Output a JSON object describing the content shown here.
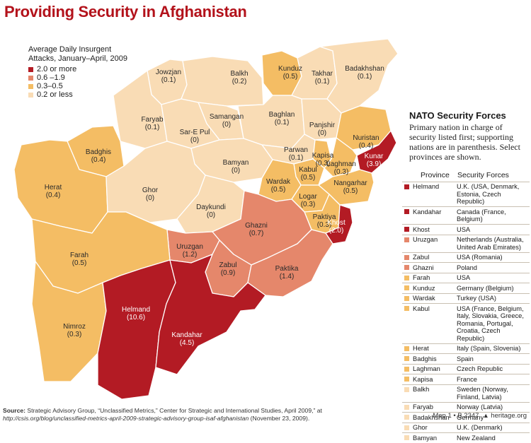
{
  "title": "Providing Security in Afghanistan",
  "legend": {
    "title_line1": "Average Daily Insurgent",
    "title_line2": "Attacks, January–April, 2009",
    "items": [
      {
        "label": "2.0 or more",
        "color": "#b31b24"
      },
      {
        "label": "0.6 –1.9",
        "color": "#e5876b"
      },
      {
        "label": "0.3–0.5",
        "color": "#f4bd64"
      },
      {
        "label": "0.2 or less",
        "color": "#f9dcb5"
      }
    ]
  },
  "provinces": [
    {
      "name": "Jowzjan",
      "value": "(0.1)",
      "color": "#f9dcb5"
    },
    {
      "name": "Balkh",
      "value": "(0.2)",
      "color": "#f9dcb5"
    },
    {
      "name": "Kunduz",
      "value": "(0.5)",
      "color": "#f4bd64"
    },
    {
      "name": "Takhar",
      "value": "(0.1)",
      "color": "#f9dcb5"
    },
    {
      "name": "Badakhshan",
      "value": "(0.1)",
      "color": "#f9dcb5"
    },
    {
      "name": "Faryab",
      "value": "(0.1)",
      "color": "#f9dcb5"
    },
    {
      "name": "Samangan",
      "value": "(0)",
      "color": "#f9dcb5"
    },
    {
      "name": "Baghlan",
      "value": "(0.1)",
      "color": "#f9dcb5"
    },
    {
      "name": "Panjshir",
      "value": "(0)",
      "color": "#f9dcb5"
    },
    {
      "name": "Sar-E Pul",
      "value": "(0)",
      "color": "#f9dcb5"
    },
    {
      "name": "Nuristan",
      "value": "(0.4)",
      "color": "#f4bd64"
    },
    {
      "name": "Badghis",
      "value": "(0.4)",
      "color": "#f4bd64"
    },
    {
      "name": "Kunar",
      "value": "(3.9)",
      "color": "#b31b24"
    },
    {
      "name": "Parwan",
      "value": "(0.1)",
      "color": "#f9dcb5"
    },
    {
      "name": "Kapisa",
      "value": "(0.3)",
      "color": "#f4bd64"
    },
    {
      "name": "Bamyan",
      "value": "(0)",
      "color": "#f9dcb5"
    },
    {
      "name": "Kabul",
      "value": "(0.5)",
      "color": "#f4bd64"
    },
    {
      "name": "Laghman",
      "value": "(0.3)",
      "color": "#f4bd64"
    },
    {
      "name": "Herat",
      "value": "(0.4)",
      "color": "#f4bd64"
    },
    {
      "name": "Wardak",
      "value": "(0.5)",
      "color": "#f4bd64"
    },
    {
      "name": "Nangarhar",
      "value": "(0.5)",
      "color": "#f4bd64"
    },
    {
      "name": "Ghor",
      "value": "(0)",
      "color": "#f9dcb5"
    },
    {
      "name": "Logar",
      "value": "(0.3)",
      "color": "#f4bd64"
    },
    {
      "name": "Daykundi",
      "value": "(0)",
      "color": "#f9dcb5"
    },
    {
      "name": "Paktiya",
      "value": "(0.3)",
      "color": "#f4bd64"
    },
    {
      "name": "Khost",
      "value": "(2.0)",
      "color": "#b31b24"
    },
    {
      "name": "Ghazni",
      "value": "(0.7)",
      "color": "#e5876b"
    },
    {
      "name": "Uruzgan",
      "value": "(1.2)",
      "color": "#e5876b"
    },
    {
      "name": "Farah",
      "value": "(0.5)",
      "color": "#f4bd64"
    },
    {
      "name": "Zabul",
      "value": "(0.9)",
      "color": "#e5876b"
    },
    {
      "name": "Paktika",
      "value": "(1.4)",
      "color": "#e5876b"
    },
    {
      "name": "Nimroz",
      "value": "(0.3)",
      "color": "#f4bd64"
    },
    {
      "name": "Helmand",
      "value": "(10.6)",
      "color": "#b31b24"
    },
    {
      "name": "Kandahar",
      "value": "(4.5)",
      "color": "#b31b24"
    }
  ],
  "nato": {
    "title": "NATO Security Forces",
    "desc": "Primary nation in charge of security listed first; supporting nations are in parenthesis. Select provinces are shown.",
    "col_province": "Province",
    "col_forces": "Security Forces",
    "rows": [
      {
        "province": "Helmand",
        "forces": "U.K. (USA, Denmark, Estonia, Czech Republic)",
        "color": "#b31b24"
      },
      {
        "province": "Kandahar",
        "forces": "Canada (France, Belgium)",
        "color": "#b31b24"
      },
      {
        "province": "Khost",
        "forces": "USA",
        "color": "#b31b24"
      },
      {
        "province": "Uruzgan",
        "forces": "Netherlands (Australia, United Arab Emirates)",
        "color": "#e5876b"
      },
      {
        "province": "Zabul",
        "forces": "USA (Romania)",
        "color": "#e5876b"
      },
      {
        "province": "Ghazni",
        "forces": "Poland",
        "color": "#e5876b"
      },
      {
        "province": "Farah",
        "forces": "USA",
        "color": "#f4bd64"
      },
      {
        "province": "Kunduz",
        "forces": "Germany (Belgium)",
        "color": "#f4bd64"
      },
      {
        "province": "Wardak",
        "forces": "Turkey (USA)",
        "color": "#f4bd64"
      },
      {
        "province": "Kabul",
        "forces": "USA (France, Belgium, Italy, Slovakia, Greece, Romania, Portugal, Croatia, Czech Republic)",
        "color": "#f4bd64"
      },
      {
        "province": "Herat",
        "forces": "Italy (Spain, Slovenia)",
        "color": "#f4bd64"
      },
      {
        "province": "Badghis",
        "forces": "Spain",
        "color": "#f4bd64"
      },
      {
        "province": "Laghman",
        "forces": "Czech Republic",
        "color": "#f4bd64"
      },
      {
        "province": "Kapisa",
        "forces": "France",
        "color": "#f4bd64"
      },
      {
        "province": "Balkh",
        "forces": "Sweden (Norway, Finland, Latvia)",
        "color": "#f9dcb5"
      },
      {
        "province": "Faryab",
        "forces": "Norway (Latvia)",
        "color": "#f9dcb5"
      },
      {
        "province": "Badakhshan",
        "forces": "Germany",
        "color": "#f9dcb5"
      },
      {
        "province": "Ghor",
        "forces": "U.K. (Denmark)",
        "color": "#f9dcb5"
      },
      {
        "province": "Bamyan",
        "forces": "New Zealand",
        "color": "#f9dcb5"
      }
    ]
  },
  "source": {
    "label": "Source:",
    "text": "Strategic Advisory Group, “Unclassified Metrics,” Center for Strategic and International Studies, April 2009,” at",
    "url": "http://csis.org/blog/unclassified-metrics-april-2009-strategic-advisory-group-isaf-afghanistan",
    "date": "(November 23, 2009)."
  },
  "credit": {
    "map_ref": "Map 1 • B 2347",
    "site": "heritage.org",
    "icon": "bell-icon"
  }
}
